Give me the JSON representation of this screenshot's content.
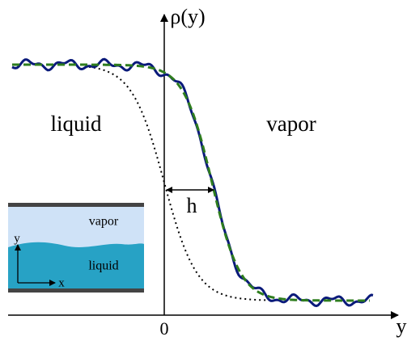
{
  "axes": {
    "y_axis_label": "ρ(y)",
    "x_axis_label": "y",
    "origin_label": "0"
  },
  "regions": {
    "left": "liquid",
    "right": "vapor"
  },
  "width_label": "h",
  "inset": {
    "top_label": "vapor",
    "bottom_label": "liquid",
    "y_label": "y",
    "x_label": "x"
  }
}
